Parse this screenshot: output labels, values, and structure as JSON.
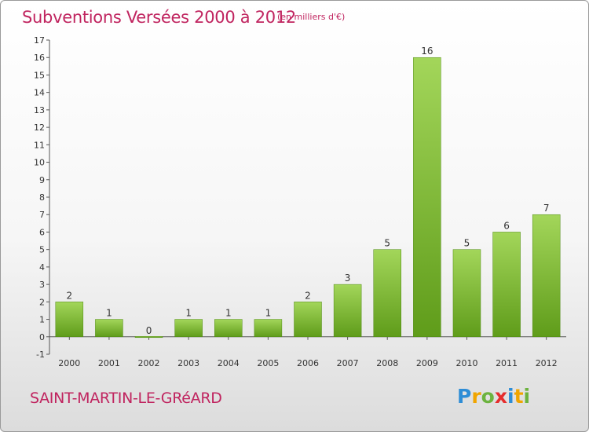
{
  "header": {
    "title": "Subventions Versées 2000 à 2012",
    "unit": "(en milliers d'€)"
  },
  "footer": {
    "commune": "SAINT-MARTIN-LE-GRéARD",
    "logo_letters": [
      "P",
      "r",
      "o",
      "x",
      "i",
      "t",
      "i"
    ],
    "logo_colors": [
      "#2e8dd6",
      "#f0a500",
      "#6cb33f",
      "#e52d2d",
      "#2e8dd6",
      "#f0a500",
      "#6cb33f"
    ]
  },
  "chart_data": {
    "type": "bar",
    "categories": [
      "2000",
      "2001",
      "2002",
      "2003",
      "2004",
      "2005",
      "2006",
      "2007",
      "2008",
      "2009",
      "2010",
      "2011",
      "2012"
    ],
    "values": [
      2,
      1,
      0,
      1,
      1,
      1,
      2,
      3,
      5,
      16,
      5,
      6,
      7
    ],
    "value_labels": [
      "2",
      "1",
      "0",
      "1",
      "1",
      "1",
      "2",
      "3",
      "5",
      "16",
      "5",
      "6",
      "7"
    ],
    "ylim": [
      -1,
      17
    ],
    "yticks": [
      -1,
      0,
      1,
      2,
      3,
      4,
      5,
      6,
      7,
      8,
      9,
      10,
      11,
      12,
      13,
      14,
      15,
      16,
      17
    ],
    "ytick_labels": [
      "-1",
      "0",
      "1",
      "2",
      "3",
      "4",
      "5",
      "6",
      "7",
      "8",
      "9",
      "10",
      "11",
      "12",
      "13",
      "14",
      "15",
      "16",
      "17"
    ],
    "grid": false,
    "bar_color_top": "#a3d65a",
    "bar_color_bottom": "#5f9c1a",
    "axis_color": "#555555"
  }
}
